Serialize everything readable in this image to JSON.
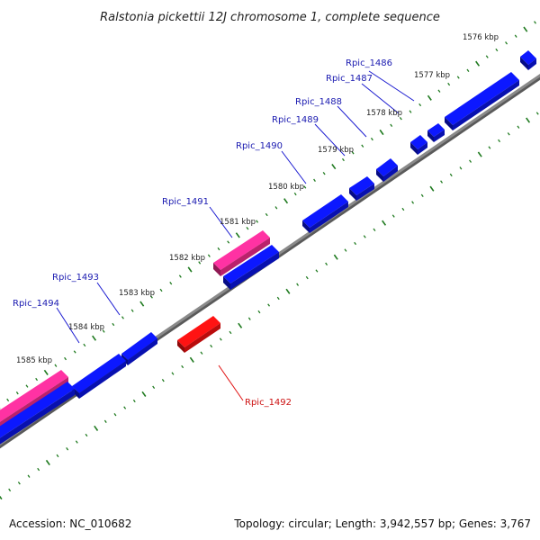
{
  "header": {
    "title": "Ralstonia pickettii 12J chromosome 1, complete sequence"
  },
  "footer": {
    "accession": "Accession: NC_010682",
    "summary": "Topology: circular; Length: 3,942,557 bp; Genes: 3,767"
  },
  "colors": {
    "forward_gene": "#0a14e0",
    "forward_pseudo": "#ee2a8a",
    "reverse_gene": "#ee1010",
    "backbone": "#8a8a8a",
    "tick": "#1f7a1f",
    "label_forward": "#1a1ab0",
    "label_reverse": "#cc1111",
    "leader_forward": "#1a1ad0",
    "leader_reverse": "#e01010"
  },
  "kbp_labels": [
    "1576 kbp",
    "1577 kbp",
    "1578 kbp",
    "1579 kbp",
    "1580 kbp",
    "1581 kbp",
    "1582 kbp",
    "1583 kbp",
    "1584 kbp",
    "1585 kbp"
  ],
  "gene_labels": {
    "forward": [
      "Rpic_1486",
      "Rpic_1487",
      "Rpic_1488",
      "Rpic_1489",
      "Rpic_1490",
      "Rpic_1491",
      "Rpic_1493",
      "Rpic_1494"
    ],
    "reverse": [
      "Rpic_1492"
    ]
  }
}
